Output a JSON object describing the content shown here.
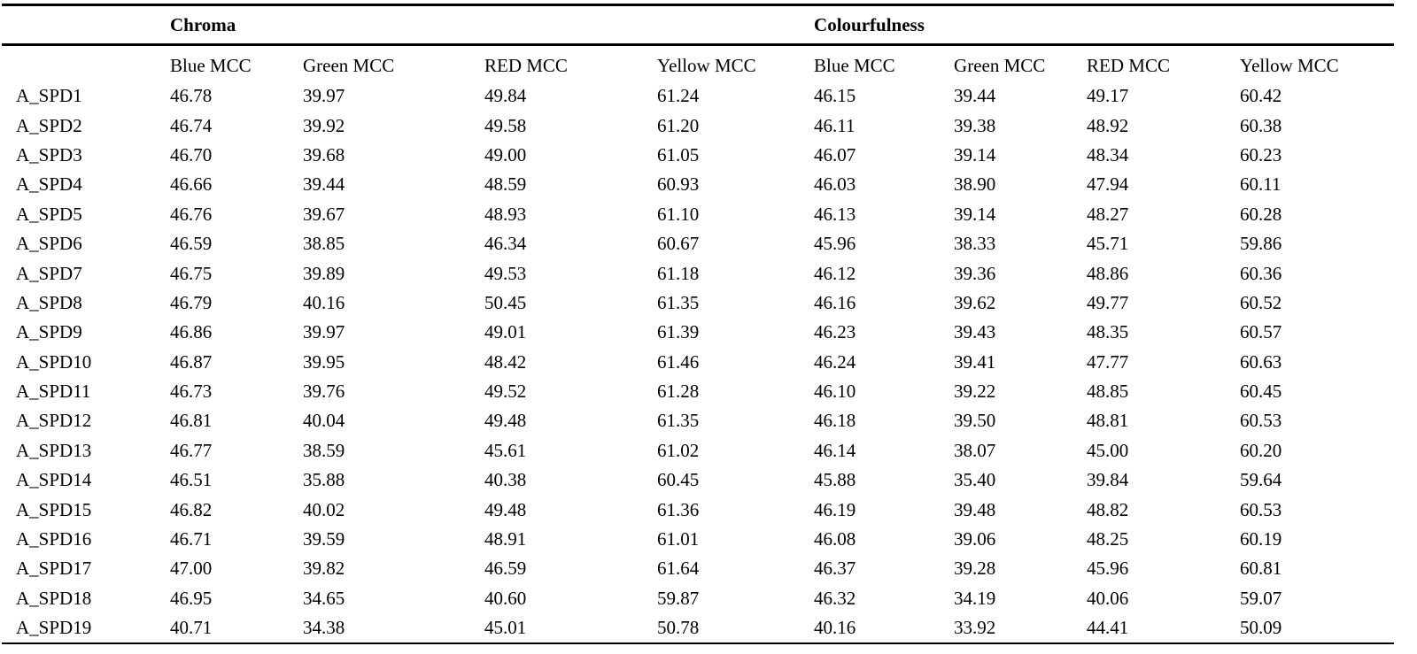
{
  "groups": {
    "chroma": "Chroma",
    "colourfulness": "Colourfulness"
  },
  "columns": [
    "Blue MCC",
    "Green MCC",
    "RED MCC",
    "Yellow MCC",
    "Blue MCC",
    "Green MCC",
    "RED MCC",
    "Yellow MCC"
  ],
  "rows": [
    {
      "label": "A_SPD1",
      "values": [
        "46.78",
        "39.97",
        "49.84",
        "61.24",
        "46.15",
        "39.44",
        "49.17",
        "60.42"
      ]
    },
    {
      "label": "A_SPD2",
      "values": [
        "46.74",
        "39.92",
        "49.58",
        "61.20",
        "46.11",
        "39.38",
        "48.92",
        "60.38"
      ]
    },
    {
      "label": "A_SPD3",
      "values": [
        "46.70",
        "39.68",
        "49.00",
        "61.05",
        "46.07",
        "39.14",
        "48.34",
        "60.23"
      ]
    },
    {
      "label": "A_SPD4",
      "values": [
        "46.66",
        "39.44",
        "48.59",
        "60.93",
        "46.03",
        "38.90",
        "47.94",
        "60.11"
      ]
    },
    {
      "label": "A_SPD5",
      "values": [
        "46.76",
        "39.67",
        "48.93",
        "61.10",
        "46.13",
        "39.14",
        "48.27",
        "60.28"
      ]
    },
    {
      "label": "A_SPD6",
      "values": [
        "46.59",
        "38.85",
        "46.34",
        "60.67",
        "45.96",
        "38.33",
        "45.71",
        "59.86"
      ]
    },
    {
      "label": "A_SPD7",
      "values": [
        "46.75",
        "39.89",
        "49.53",
        "61.18",
        "46.12",
        "39.36",
        "48.86",
        "60.36"
      ]
    },
    {
      "label": "A_SPD8",
      "values": [
        "46.79",
        "40.16",
        "50.45",
        "61.35",
        "46.16",
        "39.62",
        "49.77",
        "60.52"
      ]
    },
    {
      "label": "A_SPD9",
      "values": [
        "46.86",
        "39.97",
        "49.01",
        "61.39",
        "46.23",
        "39.43",
        "48.35",
        "60.57"
      ]
    },
    {
      "label": "A_SPD10",
      "values": [
        "46.87",
        "39.95",
        "48.42",
        "61.46",
        "46.24",
        "39.41",
        "47.77",
        "60.63"
      ]
    },
    {
      "label": "A_SPD11",
      "values": [
        "46.73",
        "39.76",
        "49.52",
        "61.28",
        "46.10",
        "39.22",
        "48.85",
        "60.45"
      ]
    },
    {
      "label": "A_SPD12",
      "values": [
        "46.81",
        "40.04",
        "49.48",
        "61.35",
        "46.18",
        "39.50",
        "48.81",
        "60.53"
      ]
    },
    {
      "label": "A_SPD13",
      "values": [
        "46.77",
        "38.59",
        "45.61",
        "61.02",
        "46.14",
        "38.07",
        "45.00",
        "60.20"
      ]
    },
    {
      "label": "A_SPD14",
      "values": [
        "46.51",
        "35.88",
        "40.38",
        "60.45",
        "45.88",
        "35.40",
        "39.84",
        "59.64"
      ]
    },
    {
      "label": "A_SPD15",
      "values": [
        "46.82",
        "40.02",
        "49.48",
        "61.36",
        "46.19",
        "39.48",
        "48.82",
        "60.53"
      ]
    },
    {
      "label": "A_SPD16",
      "values": [
        "46.71",
        "39.59",
        "48.91",
        "61.01",
        "46.08",
        "39.06",
        "48.25",
        "60.19"
      ]
    },
    {
      "label": "A_SPD17",
      "values": [
        "47.00",
        "39.82",
        "46.59",
        "61.64",
        "46.37",
        "39.28",
        "45.96",
        "60.81"
      ]
    },
    {
      "label": "A_SPD18",
      "values": [
        "46.95",
        "34.65",
        "40.60",
        "59.87",
        "46.32",
        "34.19",
        "40.06",
        "59.07"
      ]
    },
    {
      "label": "A_SPD19",
      "values": [
        "40.71",
        "34.38",
        "45.01",
        "50.78",
        "40.16",
        "33.92",
        "44.41",
        "50.09"
      ]
    }
  ]
}
